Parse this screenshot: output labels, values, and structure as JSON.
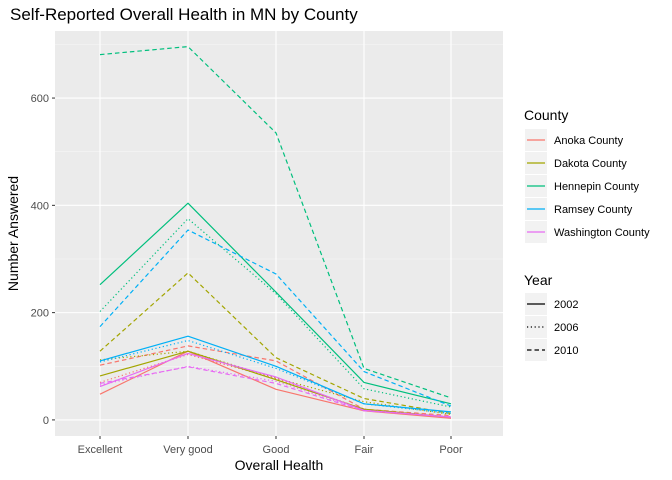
{
  "chart_data": {
    "type": "line",
    "title": "Self-Reported Overall Health in MN by County",
    "xlabel": "Overall Health",
    "ylabel": "Number Answered",
    "categories": [
      "Excellent",
      "Very good",
      "Good",
      "Fair",
      "Poor"
    ],
    "ylim": [
      -30,
      725
    ],
    "yticks": [
      0,
      200,
      400,
      600
    ],
    "grid": true,
    "legend_position": "right",
    "color_legend": {
      "title": "County",
      "entries": [
        {
          "name": "Anoka County",
          "color": "#F8766D"
        },
        {
          "name": "Dakota County",
          "color": "#A3A500"
        },
        {
          "name": "Hennepin County",
          "color": "#00BF7D"
        },
        {
          "name": "Ramsey County",
          "color": "#00B0F6"
        },
        {
          "name": "Washington County",
          "color": "#E76BF3"
        }
      ]
    },
    "linetype_legend": {
      "title": "Year",
      "entries": [
        {
          "name": "2002",
          "dash": "solid"
        },
        {
          "name": "2006",
          "dash": "dotted"
        },
        {
          "name": "2010",
          "dash": "dashed"
        }
      ]
    },
    "series": [
      {
        "county": "Anoka County",
        "year": "2002",
        "values": [
          48,
          128,
          57,
          17,
          3
        ]
      },
      {
        "county": "Anoka County",
        "year": "2006",
        "values": [
          70,
          122,
          77,
          20,
          5
        ]
      },
      {
        "county": "Anoka County",
        "year": "2010",
        "values": [
          102,
          138,
          110,
          20,
          8
        ]
      },
      {
        "county": "Dakota County",
        "year": "2002",
        "values": [
          82,
          128,
          75,
          20,
          5
        ]
      },
      {
        "county": "Dakota County",
        "year": "2006",
        "values": [
          112,
          128,
          78,
          34,
          10
        ]
      },
      {
        "county": "Dakota County",
        "year": "2010",
        "values": [
          128,
          274,
          116,
          40,
          12
        ]
      },
      {
        "county": "Hennepin County",
        "year": "2002",
        "values": [
          252,
          404,
          238,
          70,
          30
        ]
      },
      {
        "county": "Hennepin County",
        "year": "2006",
        "values": [
          202,
          375,
          235,
          58,
          24
        ]
      },
      {
        "county": "Hennepin County",
        "year": "2010",
        "values": [
          681,
          696,
          535,
          96,
          41
        ]
      },
      {
        "county": "Ramsey County",
        "year": "2002",
        "values": [
          110,
          156,
          100,
          30,
          15
        ]
      },
      {
        "county": "Ramsey County",
        "year": "2006",
        "values": [
          108,
          148,
          96,
          30,
          12
        ]
      },
      {
        "county": "Ramsey County",
        "year": "2010",
        "values": [
          174,
          354,
          272,
          90,
          26
        ]
      },
      {
        "county": "Washington County",
        "year": "2002",
        "values": [
          62,
          124,
          80,
          18,
          5
        ]
      },
      {
        "county": "Washington County",
        "year": "2006",
        "values": [
          65,
          100,
          72,
          18,
          6
        ]
      },
      {
        "county": "Washington County",
        "year": "2010",
        "values": [
          68,
          99,
          68,
          17,
          6
        ]
      }
    ]
  }
}
